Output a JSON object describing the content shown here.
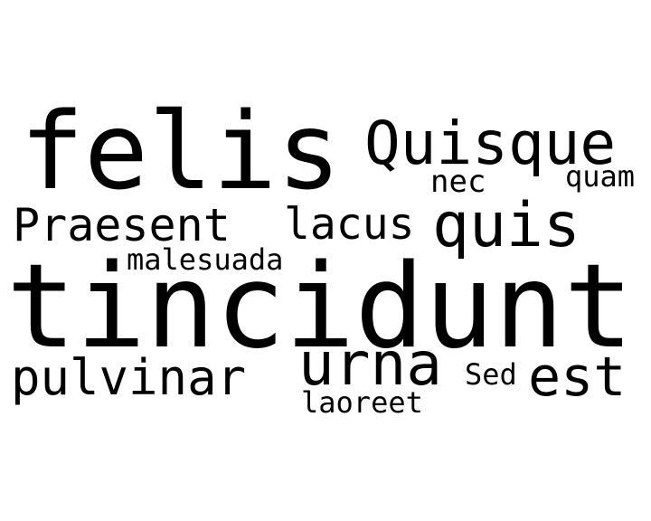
{
  "background_color": "#ffffff",
  "text_color": "#000000",
  "words": {
    "felis": "felis",
    "quisque": "Quisque",
    "nec": "nec",
    "quam": "quam",
    "praesent": "Praesent",
    "lacus": "lacus",
    "quis": "quis",
    "malesuada": "malesuada",
    "tincidunt": "tincidunt",
    "pulvinar": "pulvinar",
    "urna": "urna",
    "sed": "Sed",
    "est": "est",
    "laoreet": "laoreet"
  }
}
